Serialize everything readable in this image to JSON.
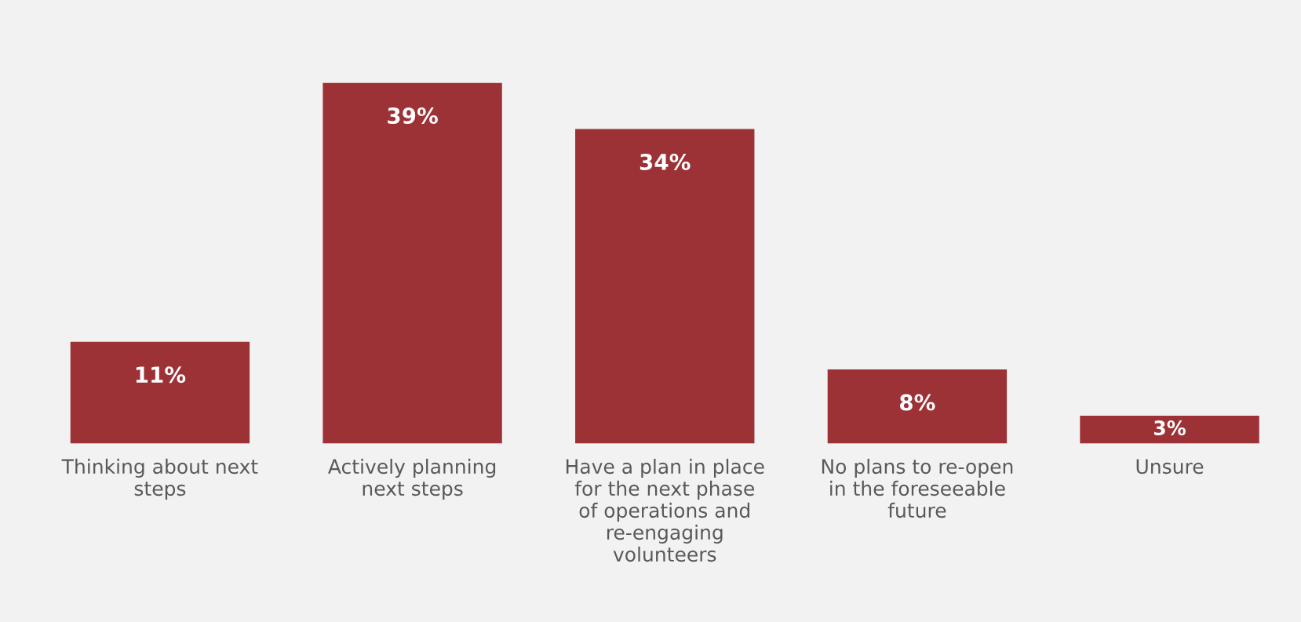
{
  "chart_data": {
    "type": "bar",
    "categories": [
      "Thinking about next steps",
      "Actively planning next steps",
      "Have a plan in place for the next phase of operations and re-engaging volunteers",
      "No plans to re-open in the foreseeable future",
      "Unsure"
    ],
    "values": [
      11,
      39,
      34,
      8,
      3
    ],
    "value_labels": [
      "11%",
      "39%",
      "34%",
      "8%",
      "3%"
    ],
    "color": "#9c3136",
    "grid": false
  }
}
